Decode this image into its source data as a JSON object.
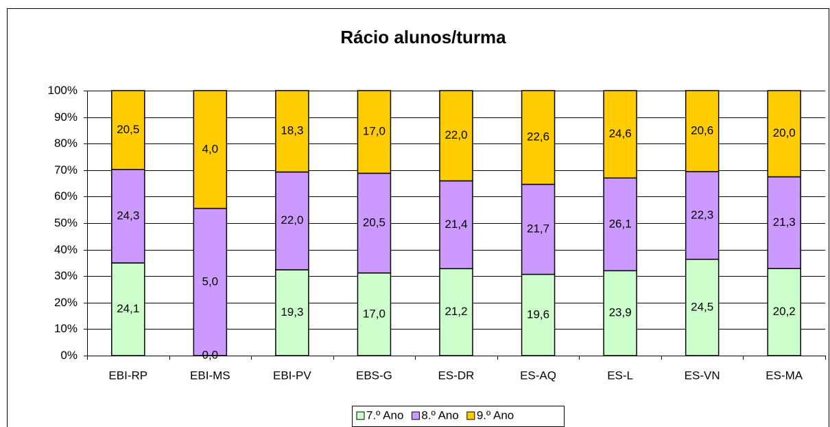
{
  "chart_data": {
    "type": "bar",
    "stacking": "percent",
    "title": "Rácio alunos/turma",
    "categories": [
      "EBI-RP",
      "EBI-MS",
      "EBI-PV",
      "EBS-G",
      "ES-DR",
      "ES-AQ",
      "ES-L",
      "ES-VN",
      "ES-MA"
    ],
    "series": [
      {
        "name": "7.º Ano",
        "color": "#ccffcc",
        "values": [
          24.1,
          0.0,
          19.3,
          17.0,
          21.2,
          19.6,
          23.9,
          24.5,
          20.2
        ],
        "value_labels": [
          "24,1",
          "0,0",
          "19,3",
          "17,0",
          "21,2",
          "19,6",
          "23,9",
          "24,5",
          "20,2"
        ]
      },
      {
        "name": "8.º Ano",
        "color": "#cc99ff",
        "values": [
          24.3,
          5.0,
          22.0,
          20.5,
          21.4,
          21.7,
          26.1,
          22.3,
          21.3
        ],
        "value_labels": [
          "24,3",
          "5,0",
          "22,0",
          "20,5",
          "21,4",
          "21,7",
          "26,1",
          "22,3",
          "21,3"
        ]
      },
      {
        "name": "9.º Ano",
        "color": "#ffcc00",
        "values": [
          20.5,
          4.0,
          18.3,
          17.0,
          22.0,
          22.6,
          24.6,
          20.6,
          20.0
        ],
        "value_labels": [
          "20,5",
          "4,0",
          "18,3",
          "17,0",
          "22,0",
          "22,6",
          "24,6",
          "20,6",
          "20,0"
        ]
      }
    ],
    "ylim": [
      0,
      100
    ],
    "yticks": [
      {
        "value": 0,
        "label": "0%"
      },
      {
        "value": 10,
        "label": "10%"
      },
      {
        "value": 20,
        "label": "20%"
      },
      {
        "value": 30,
        "label": "30%"
      },
      {
        "value": 40,
        "label": "40%"
      },
      {
        "value": 50,
        "label": "50%"
      },
      {
        "value": 60,
        "label": "60%"
      },
      {
        "value": 70,
        "label": "70%"
      },
      {
        "value": 80,
        "label": "80%"
      },
      {
        "value": 90,
        "label": "90%"
      },
      {
        "value": 100,
        "label": "100%"
      }
    ],
    "grid": true,
    "legend": "bottom"
  }
}
